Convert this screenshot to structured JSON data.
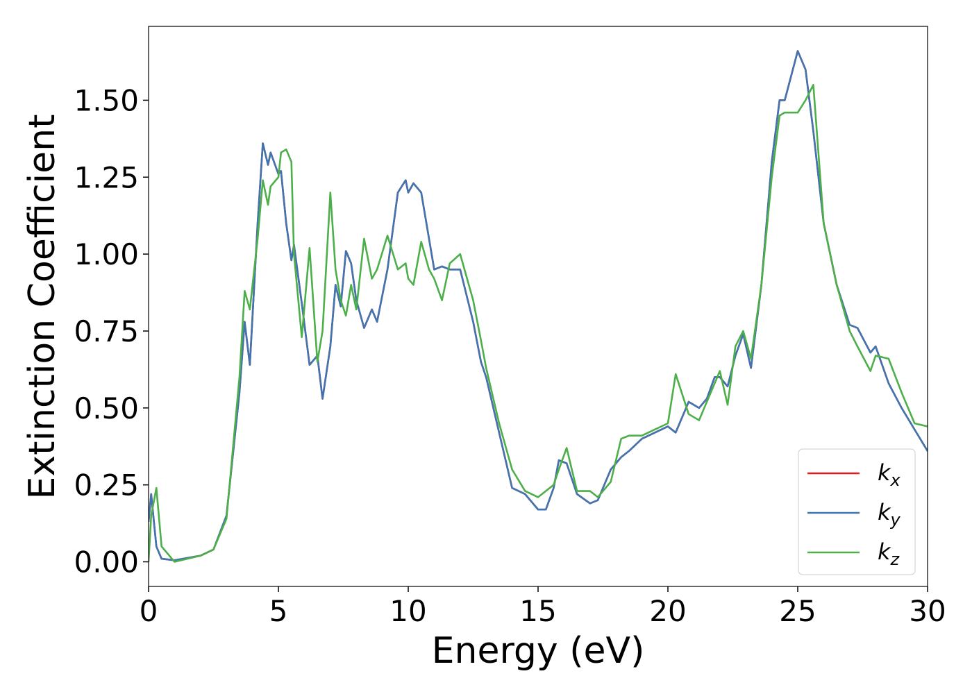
{
  "chart_data": {
    "type": "line",
    "xlabel": "Energy (eV)",
    "ylabel": "Extinction Coefficient",
    "x": [
      0,
      0.1,
      0.3,
      0.5,
      1,
      2,
      2.5,
      3,
      3.5,
      3.7,
      3.9,
      4.2,
      4.4,
      4.6,
      4.7,
      5,
      5.1,
      5.3,
      5.5,
      5.6,
      5.9,
      6.2,
      6.5,
      6.7,
      7,
      7.2,
      7.4,
      7.6,
      7.8,
      8,
      8.3,
      8.6,
      8.8,
      9.2,
      9.6,
      9.9,
      10,
      10.2,
      10.5,
      10.8,
      11,
      11.3,
      11.6,
      12,
      12.5,
      12.8,
      13,
      13.5,
      14,
      14.5,
      15,
      15.3,
      15.6,
      15.8,
      16.1,
      16.5,
      17,
      17.3,
      17.8,
      18.2,
      18.5,
      19,
      19.5,
      20,
      20.3,
      20.8,
      21.2,
      21.5,
      21.8,
      22,
      22.3,
      22.6,
      22.9,
      23.2,
      23.6,
      24,
      24.3,
      24.5,
      25,
      25.3,
      25.6,
      26,
      26.5,
      27,
      27.3,
      27.8,
      28,
      28.5,
      29,
      29.5,
      30
    ],
    "series": [
      {
        "name": "kx",
        "color": "#e41a1c",
        "values": [
          0.13,
          0.22,
          0.05,
          0.01,
          0.005,
          0.02,
          0.04,
          0.15,
          0.55,
          0.78,
          0.64,
          1.1,
          1.36,
          1.29,
          1.33,
          1.26,
          1.27,
          1.1,
          0.98,
          1.03,
          0.84,
          0.64,
          0.67,
          0.53,
          0.7,
          0.9,
          0.83,
          1.01,
          0.97,
          0.85,
          0.76,
          0.82,
          0.78,
          0.95,
          1.2,
          1.24,
          1.2,
          1.23,
          1.2,
          1.05,
          0.95,
          0.96,
          0.95,
          0.95,
          0.78,
          0.65,
          0.6,
          0.42,
          0.24,
          0.22,
          0.17,
          0.17,
          0.24,
          0.33,
          0.32,
          0.22,
          0.19,
          0.2,
          0.3,
          0.34,
          0.36,
          0.4,
          0.42,
          0.44,
          0.42,
          0.52,
          0.5,
          0.53,
          0.6,
          0.6,
          0.57,
          0.67,
          0.74,
          0.63,
          0.9,
          1.3,
          1.5,
          1.5,
          1.66,
          1.6,
          1.4,
          1.1,
          0.9,
          0.77,
          0.76,
          0.68,
          0.7,
          0.58,
          0.5,
          0.43,
          0.36
        ]
      },
      {
        "name": "ky",
        "color": "#3f75b0",
        "values": [
          0.13,
          0.22,
          0.05,
          0.01,
          0.005,
          0.02,
          0.04,
          0.15,
          0.55,
          0.78,
          0.64,
          1.1,
          1.36,
          1.29,
          1.33,
          1.26,
          1.27,
          1.1,
          0.98,
          1.03,
          0.84,
          0.64,
          0.67,
          0.53,
          0.7,
          0.9,
          0.83,
          1.01,
          0.97,
          0.85,
          0.76,
          0.82,
          0.78,
          0.95,
          1.2,
          1.24,
          1.2,
          1.23,
          1.2,
          1.05,
          0.95,
          0.96,
          0.95,
          0.95,
          0.78,
          0.65,
          0.6,
          0.42,
          0.24,
          0.22,
          0.17,
          0.17,
          0.24,
          0.33,
          0.32,
          0.22,
          0.19,
          0.2,
          0.3,
          0.34,
          0.36,
          0.4,
          0.42,
          0.44,
          0.42,
          0.52,
          0.5,
          0.53,
          0.6,
          0.6,
          0.57,
          0.67,
          0.74,
          0.63,
          0.9,
          1.3,
          1.5,
          1.5,
          1.66,
          1.6,
          1.4,
          1.1,
          0.9,
          0.77,
          0.76,
          0.68,
          0.7,
          0.58,
          0.5,
          0.43,
          0.36
        ]
      },
      {
        "name": "kz",
        "color": "#4daf4a",
        "values": [
          0,
          0.15,
          0.24,
          0.05,
          0.0,
          0.02,
          0.04,
          0.14,
          0.6,
          0.88,
          0.82,
          1.05,
          1.24,
          1.16,
          1.22,
          1.25,
          1.33,
          1.34,
          1.3,
          1.0,
          0.73,
          1.02,
          0.65,
          0.75,
          1.2,
          0.95,
          0.85,
          0.8,
          0.9,
          0.82,
          1.05,
          0.92,
          0.95,
          1.06,
          0.95,
          0.97,
          0.92,
          0.9,
          1.04,
          0.95,
          0.92,
          0.85,
          0.97,
          1.0,
          0.85,
          0.72,
          0.63,
          0.45,
          0.3,
          0.23,
          0.21,
          0.23,
          0.25,
          0.3,
          0.37,
          0.23,
          0.23,
          0.21,
          0.26,
          0.4,
          0.41,
          0.41,
          0.43,
          0.45,
          0.61,
          0.48,
          0.46,
          0.52,
          0.58,
          0.62,
          0.51,
          0.7,
          0.75,
          0.66,
          0.9,
          1.25,
          1.45,
          1.46,
          1.46,
          1.5,
          1.55,
          1.1,
          0.9,
          0.75,
          0.7,
          0.62,
          0.67,
          0.66,
          0.55,
          0.45,
          0.44
        ]
      }
    ],
    "xlim": [
      0,
      30
    ],
    "ylim": [
      -0.08,
      1.74
    ],
    "xticks": [
      0,
      5,
      10,
      15,
      20,
      25,
      30
    ],
    "yticks": [
      {
        "value": 0,
        "label": "0.00"
      },
      {
        "value": 0.25,
        "label": "0.25"
      },
      {
        "value": 0.5,
        "label": "0.50"
      },
      {
        "value": 0.75,
        "label": "0.75"
      },
      {
        "value": 1,
        "label": "1.00"
      },
      {
        "value": 1.25,
        "label": "1.25"
      },
      {
        "value": 1.5,
        "label": "1.50"
      }
    ],
    "grid": false,
    "legend": "lower right"
  }
}
